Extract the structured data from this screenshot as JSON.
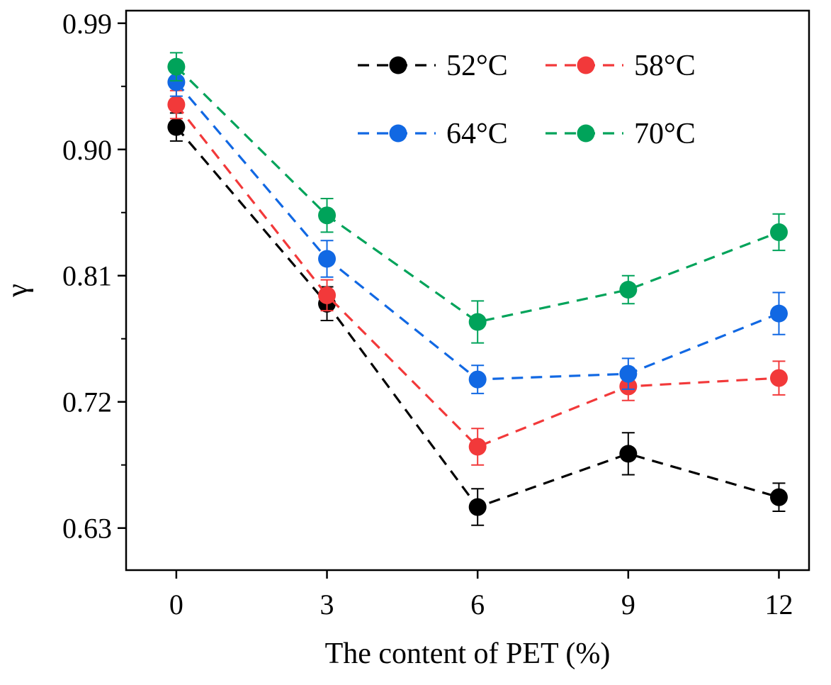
{
  "chart_data": {
    "type": "line",
    "title": "",
    "xlabel": "The content of PET (%)",
    "ylabel": "γ",
    "x": [
      0,
      3,
      6,
      9,
      12
    ],
    "xticks": [
      "0",
      "3",
      "6",
      "9",
      "12"
    ],
    "yticks": [
      "0.63",
      "0.72",
      "0.81",
      "0.90",
      "0.99"
    ],
    "yticks_values": [
      0.63,
      0.72,
      0.81,
      0.9,
      0.99
    ],
    "xlim": [
      -1,
      12.6
    ],
    "ylim": [
      0.6,
      0.999
    ],
    "grid": false,
    "legend": "top-right",
    "series": [
      {
        "name": "52°C",
        "color": "#000000",
        "values": [
          0.916,
          0.79,
          0.645,
          0.683,
          0.652
        ],
        "errors": [
          0.01,
          0.012,
          0.013,
          0.015,
          0.01
        ]
      },
      {
        "name": "58°C",
        "color": "#f2393a",
        "values": [
          0.932,
          0.796,
          0.688,
          0.731,
          0.737
        ],
        "errors": [
          0.01,
          0.011,
          0.013,
          0.01,
          0.012
        ]
      },
      {
        "name": "64°C",
        "color": "#1168e3",
        "values": [
          0.948,
          0.822,
          0.736,
          0.74,
          0.783
        ],
        "errors": [
          0.01,
          0.013,
          0.01,
          0.011,
          0.015
        ]
      },
      {
        "name": "70°C",
        "color": "#00a35a",
        "values": [
          0.959,
          0.853,
          0.777,
          0.8,
          0.841
        ],
        "errors": [
          0.01,
          0.012,
          0.015,
          0.01,
          0.013
        ]
      }
    ]
  }
}
